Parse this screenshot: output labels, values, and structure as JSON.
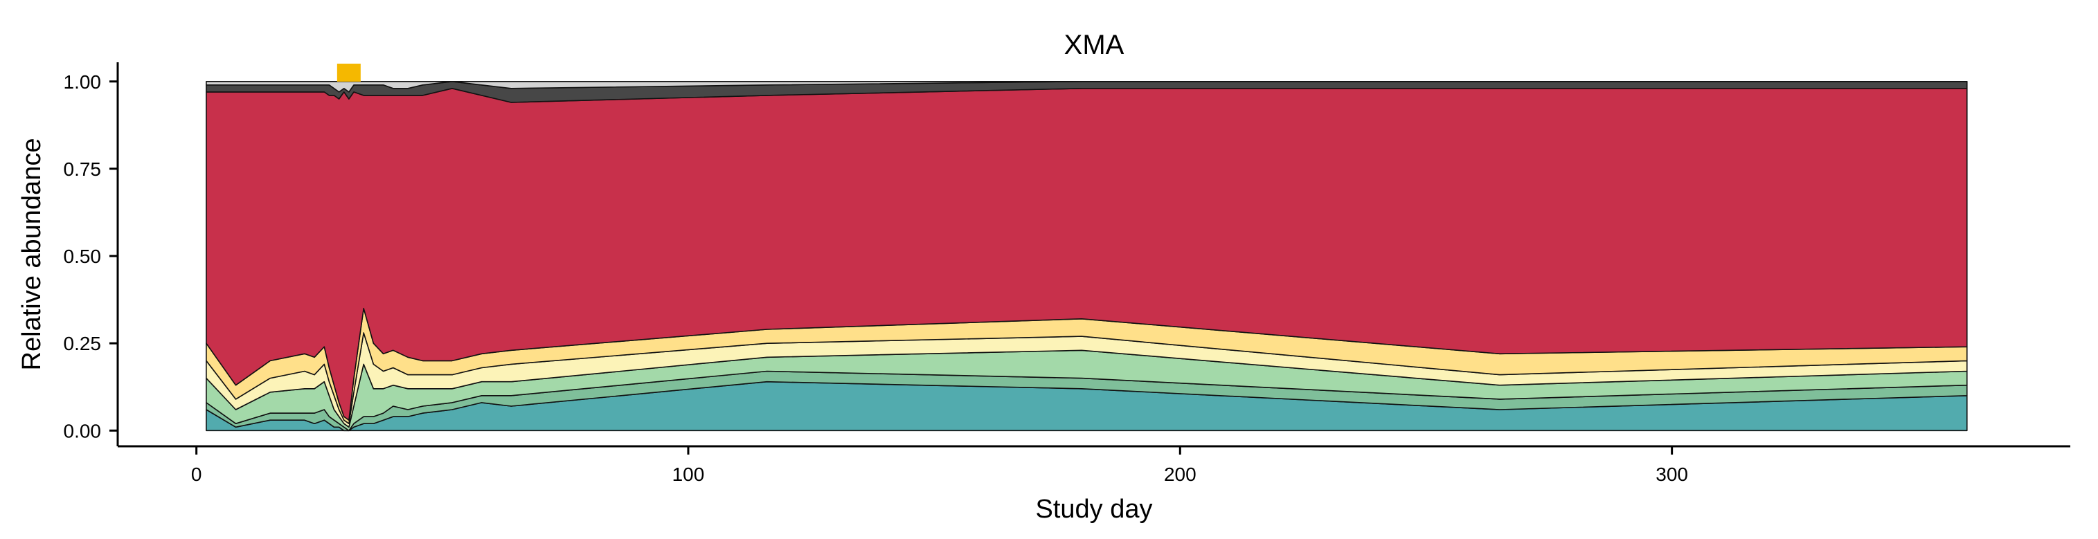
{
  "chart_data": {
    "type": "area",
    "title": "XMA",
    "xlabel": "Study day",
    "ylabel": "Relative abundance",
    "xlim": [
      -16,
      381
    ],
    "ylim": [
      -0.045,
      1.055
    ],
    "x_ticks": [
      0,
      100,
      200,
      300
    ],
    "y_ticks": [
      0.0,
      0.25,
      0.5,
      0.75,
      1.0
    ],
    "y_tick_labels": [
      "0.00",
      "0.25",
      "0.50",
      "0.75",
      "1.00"
    ],
    "grid": false,
    "legend": "none",
    "x": [
      2,
      8,
      15,
      22,
      24,
      26,
      27,
      28,
      29,
      30,
      31,
      32,
      34,
      36,
      38,
      40,
      43,
      46,
      52,
      58,
      64,
      116,
      180,
      265,
      360
    ],
    "series": [
      {
        "color": "#52ABAE",
        "values": [
          0.06,
          0.01,
          0.03,
          0.03,
          0.02,
          0.03,
          0.02,
          0.01,
          0.01,
          0.0,
          0.0,
          0.01,
          0.02,
          0.02,
          0.03,
          0.04,
          0.04,
          0.05,
          0.06,
          0.08,
          0.07,
          0.14,
          0.12,
          0.06,
          0.1
        ]
      },
      {
        "color": "#7FBF9A",
        "values": [
          0.02,
          0.01,
          0.02,
          0.02,
          0.03,
          0.03,
          0.02,
          0.02,
          0.01,
          0.01,
          0.0,
          0.01,
          0.02,
          0.02,
          0.02,
          0.03,
          0.02,
          0.02,
          0.02,
          0.02,
          0.03,
          0.03,
          0.03,
          0.03,
          0.03
        ]
      },
      {
        "color": "#A3D9A9",
        "values": [
          0.07,
          0.04,
          0.06,
          0.07,
          0.07,
          0.08,
          0.06,
          0.03,
          0.02,
          0.01,
          0.01,
          0.05,
          0.15,
          0.08,
          0.07,
          0.06,
          0.06,
          0.05,
          0.04,
          0.04,
          0.04,
          0.04,
          0.08,
          0.04,
          0.04
        ]
      },
      {
        "color": "#FCF3B8",
        "values": [
          0.05,
          0.03,
          0.04,
          0.05,
          0.04,
          0.05,
          0.04,
          0.04,
          0.02,
          0.01,
          0.01,
          0.04,
          0.09,
          0.07,
          0.05,
          0.05,
          0.04,
          0.04,
          0.04,
          0.04,
          0.05,
          0.04,
          0.04,
          0.03,
          0.03
        ]
      },
      {
        "color": "#FFE08A",
        "values": [
          0.05,
          0.04,
          0.05,
          0.05,
          0.05,
          0.05,
          0.04,
          0.03,
          0.02,
          0.01,
          0.01,
          0.04,
          0.07,
          0.06,
          0.05,
          0.05,
          0.05,
          0.04,
          0.04,
          0.04,
          0.04,
          0.04,
          0.05,
          0.06,
          0.04
        ]
      },
      {
        "color": "#C8304B",
        "values": [
          0.72,
          0.84,
          0.77,
          0.75,
          0.76,
          0.73,
          0.78,
          0.83,
          0.87,
          0.93,
          0.92,
          0.82,
          0.61,
          0.71,
          0.74,
          0.73,
          0.75,
          0.76,
          0.78,
          0.74,
          0.71,
          0.67,
          0.66,
          0.76,
          0.74
        ]
      },
      {
        "color": "#474747",
        "values": [
          0.02,
          0.02,
          0.02,
          0.02,
          0.02,
          0.02,
          0.03,
          0.02,
          0.02,
          0.01,
          0.02,
          0.02,
          0.03,
          0.03,
          0.03,
          0.02,
          0.02,
          0.03,
          0.02,
          0.03,
          0.04,
          0.03,
          0.02,
          0.02,
          0.02
        ]
      },
      {
        "color": "#D3D3D3",
        "values": [
          0.01,
          0.01,
          0.01,
          0.01,
          0.01,
          0.01,
          0.01,
          0.02,
          0.03,
          0.02,
          0.03,
          0.01,
          0.01,
          0.01,
          0.01,
          0.02,
          0.02,
          0.01,
          0.0,
          0.01,
          0.02,
          0.01,
          0.0,
          0.0,
          0.0
        ]
      }
    ],
    "annotation_marker": {
      "x": 31,
      "color": "#F5B800"
    }
  }
}
